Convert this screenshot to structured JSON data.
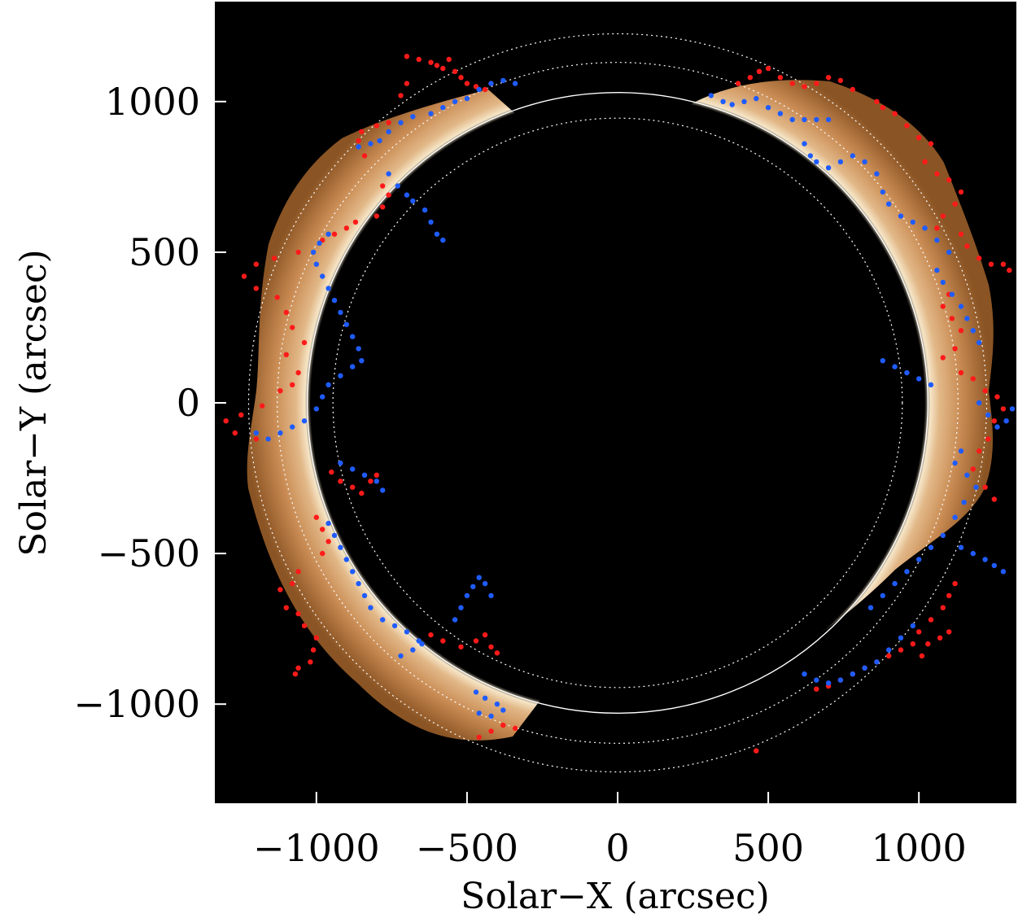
{
  "chart_data": {
    "type": "scatter",
    "title": "",
    "xlabel": "Solar−X (arcsec)",
    "ylabel": "Solar−Y (arcsec)",
    "xlim": [
      -1330,
      1330
    ],
    "ylim": [
      -1330,
      1330
    ],
    "xticks": [
      -1000,
      -500,
      0,
      500,
      1000
    ],
    "yticks": [
      -1000,
      -500,
      0,
      500,
      1000
    ],
    "xtick_labels": [
      "−1000",
      "−500",
      "0",
      "500",
      "1000"
    ],
    "ytick_labels": [
      "−1000",
      "−500",
      "0",
      "500",
      "1000"
    ],
    "background": "coronal off-limb image (copper colormap) on black",
    "reference_circles": [
      {
        "radius": 945,
        "style": "dotted",
        "color": "#ffffff"
      },
      {
        "radius": 1030,
        "style": "solid",
        "color": "#ffffff"
      },
      {
        "radius": 1130,
        "style": "dotted",
        "color": "#ffffff"
      },
      {
        "radius": 1225,
        "style": "dotted",
        "color": "#ffffff"
      }
    ],
    "colors": {
      "series_a": "#ff1a1a",
      "series_b": "#1f5cff",
      "frame_bg": "#000000"
    },
    "series": [
      {
        "color": "#ff1a1a",
        "points": [
          [
            -700,
            1150
          ],
          [
            -660,
            1140
          ],
          [
            -620,
            1130
          ],
          [
            -600,
            1120
          ],
          [
            -580,
            1110
          ],
          [
            -560,
            1140
          ],
          [
            -540,
            1100
          ],
          [
            -520,
            1080
          ],
          [
            -500,
            1060
          ],
          [
            -470,
            1050
          ],
          [
            -440,
            1040
          ],
          [
            -420,
            1060
          ],
          [
            -700,
            1060
          ],
          [
            -720,
            1020
          ],
          [
            -760,
            930
          ],
          [
            -800,
            920
          ],
          [
            -850,
            900
          ],
          [
            -860,
            870
          ],
          [
            -840,
            820
          ],
          [
            -780,
            720
          ],
          [
            -760,
            690
          ],
          [
            -780,
            650
          ],
          [
            -800,
            620
          ],
          [
            -870,
            600
          ],
          [
            -900,
            580
          ],
          [
            -940,
            560
          ],
          [
            -980,
            540
          ],
          [
            -1060,
            500
          ],
          [
            -1140,
            480
          ],
          [
            -1200,
            460
          ],
          [
            -1240,
            420
          ],
          [
            -1200,
            380
          ],
          [
            -1130,
            350
          ],
          [
            -1100,
            300
          ],
          [
            -1080,
            250
          ],
          [
            -1040,
            200
          ],
          [
            -1100,
            160
          ],
          [
            -1060,
            100
          ],
          [
            -1080,
            60
          ],
          [
            -1120,
            40
          ],
          [
            -1180,
            -10
          ],
          [
            -1250,
            -40
          ],
          [
            -1300,
            -60
          ],
          [
            -1270,
            -100
          ],
          [
            -1200,
            -120
          ],
          [
            -950,
            -230
          ],
          [
            -920,
            -260
          ],
          [
            -880,
            -280
          ],
          [
            -850,
            -300
          ],
          [
            -820,
            -260
          ],
          [
            -800,
            -240
          ],
          [
            -1000,
            -380
          ],
          [
            -980,
            -420
          ],
          [
            -960,
            -460
          ],
          [
            -980,
            -500
          ],
          [
            -1060,
            -560
          ],
          [
            -1080,
            -600
          ],
          [
            -1120,
            -620
          ],
          [
            -1100,
            -680
          ],
          [
            -1060,
            -700
          ],
          [
            -1040,
            -740
          ],
          [
            -1000,
            -780
          ],
          [
            -1010,
            -820
          ],
          [
            -1020,
            -860
          ],
          [
            -1060,
            -880
          ],
          [
            -1070,
            -900
          ],
          [
            -620,
            -770
          ],
          [
            -580,
            -790
          ],
          [
            -520,
            -810
          ],
          [
            -470,
            -790
          ],
          [
            -440,
            -770
          ],
          [
            -420,
            -810
          ],
          [
            -400,
            -830
          ],
          [
            -460,
            -1110
          ],
          [
            -420,
            -1090
          ],
          [
            -380,
            -1070
          ],
          [
            -340,
            -1080
          ],
          [
            400,
            1060
          ],
          [
            440,
            1080
          ],
          [
            470,
            1100
          ],
          [
            500,
            1110
          ],
          [
            540,
            1080
          ],
          [
            580,
            1060
          ],
          [
            620,
            1050
          ],
          [
            660,
            1060
          ],
          [
            700,
            1080
          ],
          [
            740,
            1070
          ],
          [
            780,
            1040
          ],
          [
            860,
            1000
          ],
          [
            880,
            980
          ],
          [
            920,
            960
          ],
          [
            960,
            920
          ],
          [
            1000,
            880
          ],
          [
            1040,
            860
          ],
          [
            1020,
            800
          ],
          [
            1060,
            760
          ],
          [
            1100,
            740
          ],
          [
            1140,
            700
          ],
          [
            1120,
            660
          ],
          [
            1080,
            620
          ],
          [
            1060,
            580
          ],
          [
            1140,
            560
          ],
          [
            1160,
            520
          ],
          [
            1200,
            480
          ],
          [
            1240,
            460
          ],
          [
            1280,
            460
          ],
          [
            1300,
            440
          ],
          [
            1100,
            360
          ],
          [
            1080,
            320
          ],
          [
            1110,
            280
          ],
          [
            1140,
            240
          ],
          [
            1120,
            180
          ],
          [
            1080,
            150
          ],
          [
            1140,
            100
          ],
          [
            1180,
            80
          ],
          [
            1220,
            40
          ],
          [
            1260,
            20
          ],
          [
            1280,
            -20
          ],
          [
            1250,
            -60
          ],
          [
            1230,
            -120
          ],
          [
            1200,
            -160
          ],
          [
            1180,
            -220
          ],
          [
            1220,
            -280
          ],
          [
            1250,
            -320
          ],
          [
            1120,
            -600
          ],
          [
            1100,
            -640
          ],
          [
            1080,
            -680
          ],
          [
            1040,
            -720
          ],
          [
            1000,
            -760
          ],
          [
            980,
            -800
          ],
          [
            940,
            -820
          ],
          [
            900,
            -840
          ],
          [
            860,
            -860
          ],
          [
            820,
            -880
          ],
          [
            780,
            -900
          ],
          [
            740,
            -920
          ],
          [
            700,
            -940
          ],
          [
            660,
            -950
          ],
          [
            1100,
            -760
          ],
          [
            1070,
            -780
          ],
          [
            1030,
            -800
          ],
          [
            1010,
            -840
          ],
          [
            460,
            -1155
          ]
        ]
      },
      {
        "color": "#1f5cff",
        "points": [
          [
            -460,
            1040
          ],
          [
            -420,
            1060
          ],
          [
            -380,
            1070
          ],
          [
            -340,
            1060
          ],
          [
            -500,
            1010
          ],
          [
            -540,
            1000
          ],
          [
            -580,
            980
          ],
          [
            -620,
            960
          ],
          [
            -680,
            950
          ],
          [
            -720,
            930
          ],
          [
            -760,
            900
          ],
          [
            -790,
            870
          ],
          [
            -820,
            860
          ],
          [
            -860,
            850
          ],
          [
            -760,
            760
          ],
          [
            -730,
            720
          ],
          [
            -700,
            690
          ],
          [
            -680,
            670
          ],
          [
            -640,
            640
          ],
          [
            -620,
            600
          ],
          [
            -600,
            560
          ],
          [
            -580,
            540
          ],
          [
            -960,
            560
          ],
          [
            -990,
            530
          ],
          [
            -1010,
            500
          ],
          [
            -1000,
            460
          ],
          [
            -980,
            420
          ],
          [
            -960,
            380
          ],
          [
            -940,
            340
          ],
          [
            -920,
            300
          ],
          [
            -900,
            260
          ],
          [
            -880,
            220
          ],
          [
            -860,
            180
          ],
          [
            -850,
            140
          ],
          [
            -880,
            120
          ],
          [
            -920,
            90
          ],
          [
            -960,
            60
          ],
          [
            -980,
            20
          ],
          [
            -1000,
            -20
          ],
          [
            -1040,
            -60
          ],
          [
            -1080,
            -80
          ],
          [
            -1120,
            -100
          ],
          [
            -1160,
            -120
          ],
          [
            -1200,
            -100
          ],
          [
            -920,
            -200
          ],
          [
            -880,
            -220
          ],
          [
            -840,
            -240
          ],
          [
            -800,
            -260
          ],
          [
            -780,
            -290
          ],
          [
            -960,
            -400
          ],
          [
            -940,
            -440
          ],
          [
            -920,
            -480
          ],
          [
            -900,
            -520
          ],
          [
            -880,
            -560
          ],
          [
            -860,
            -600
          ],
          [
            -840,
            -640
          ],
          [
            -820,
            -680
          ],
          [
            -780,
            -720
          ],
          [
            -740,
            -740
          ],
          [
            -700,
            -760
          ],
          [
            -660,
            -790
          ],
          [
            -720,
            -840
          ],
          [
            -680,
            -820
          ],
          [
            -650,
            -800
          ],
          [
            -540,
            -720
          ],
          [
            -520,
            -680
          ],
          [
            -500,
            -640
          ],
          [
            -480,
            -610
          ],
          [
            -460,
            -580
          ],
          [
            -440,
            -600
          ],
          [
            -420,
            -640
          ],
          [
            -470,
            -960
          ],
          [
            -440,
            -980
          ],
          [
            -400,
            -1000
          ],
          [
            -380,
            -1020
          ],
          [
            -420,
            -1040
          ],
          [
            -460,
            -1030
          ],
          [
            310,
            1020
          ],
          [
            350,
            1000
          ],
          [
            380,
            990
          ],
          [
            420,
            1000
          ],
          [
            460,
            1010
          ],
          [
            500,
            980
          ],
          [
            540,
            960
          ],
          [
            580,
            940
          ],
          [
            620,
            940
          ],
          [
            660,
            940
          ],
          [
            700,
            940
          ],
          [
            620,
            860
          ],
          [
            640,
            820
          ],
          [
            660,
            800
          ],
          [
            700,
            780
          ],
          [
            740,
            800
          ],
          [
            780,
            820
          ],
          [
            820,
            800
          ],
          [
            860,
            760
          ],
          [
            880,
            700
          ],
          [
            900,
            660
          ],
          [
            940,
            620
          ],
          [
            980,
            600
          ],
          [
            1020,
            580
          ],
          [
            1060,
            540
          ],
          [
            1100,
            500
          ],
          [
            1060,
            440
          ],
          [
            1080,
            400
          ],
          [
            1110,
            360
          ],
          [
            1140,
            320
          ],
          [
            1160,
            280
          ],
          [
            1180,
            240
          ],
          [
            1200,
            200
          ],
          [
            880,
            140
          ],
          [
            920,
            120
          ],
          [
            960,
            100
          ],
          [
            1000,
            80
          ],
          [
            1040,
            60
          ],
          [
            1200,
            0
          ],
          [
            1230,
            -40
          ],
          [
            1260,
            -80
          ],
          [
            1290,
            -60
          ],
          [
            1310,
            -20
          ],
          [
            1140,
            -160
          ],
          [
            1120,
            -200
          ],
          [
            1160,
            -240
          ],
          [
            1190,
            -280
          ],
          [
            1150,
            -330
          ],
          [
            1120,
            -380
          ],
          [
            1080,
            -440
          ],
          [
            1040,
            -480
          ],
          [
            1000,
            -520
          ],
          [
            960,
            -560
          ],
          [
            920,
            -600
          ],
          [
            880,
            -640
          ],
          [
            840,
            -680
          ],
          [
            980,
            -740
          ],
          [
            940,
            -780
          ],
          [
            900,
            -820
          ],
          [
            860,
            -860
          ],
          [
            820,
            -880
          ],
          [
            780,
            -900
          ],
          [
            740,
            -920
          ],
          [
            700,
            -930
          ],
          [
            660,
            -920
          ],
          [
            620,
            -900
          ],
          [
            1140,
            -480
          ],
          [
            1180,
            -500
          ],
          [
            1220,
            -520
          ],
          [
            1250,
            -540
          ],
          [
            1280,
            -560
          ]
        ]
      }
    ]
  }
}
